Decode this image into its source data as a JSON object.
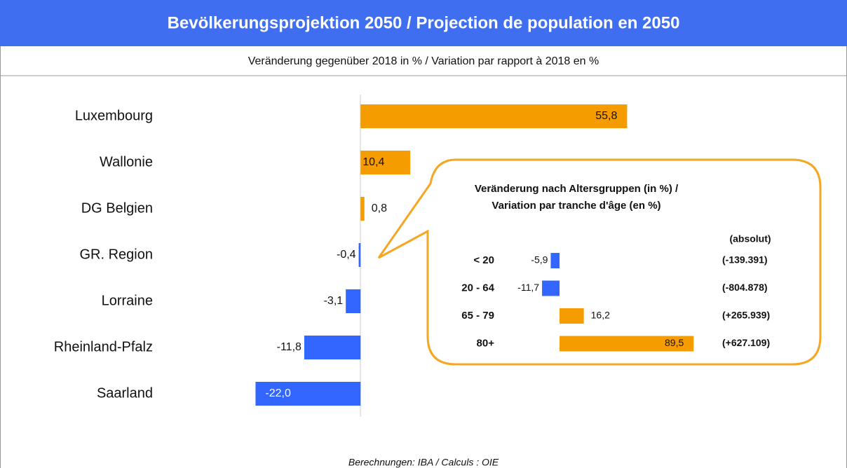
{
  "header": {
    "title": "Bevölkerungsprojektion 2050 / Projection de population en 2050",
    "subtitle": "Veränderung gegenüber 2018 in % / Variation par rapport à 2018 en %",
    "footer": "Berechnungen: IBA / Calculs : OIE"
  },
  "chart_data": [
    {
      "type": "hbar",
      "categories": [
        "Luxembourg",
        "Wallonie",
        "DG Belgien",
        "GR. Region",
        "Lorraine",
        "Rheinland-Pfalz",
        "Saarland"
      ],
      "values": [
        55.8,
        10.4,
        0.8,
        -0.4,
        -3.1,
        -11.8,
        -22.0
      ],
      "value_labels": [
        "55,8",
        "10,4",
        "0,8",
        "-0,4",
        "-3,1",
        "-11,8",
        "-22,0"
      ],
      "xlim": [
        -25,
        60
      ],
      "positive_color": "#f59c00",
      "negative_color": "#3366ff"
    },
    {
      "type": "hbar",
      "title": [
        "Veränderung nach Altersgruppen (in %)  /",
        "Variation par tranche d'âge (en %)"
      ],
      "categories": [
        "< 20",
        "20 - 64",
        "65 - 79",
        "80+"
      ],
      "values": [
        -5.9,
        -11.7,
        16.2,
        89.5
      ],
      "value_labels": [
        "-5,9",
        "-11,7",
        "16,2",
        "89,5"
      ],
      "absolute_header": "(absolut)",
      "absolute_labels": [
        "(-139.391)",
        "(-804.878)",
        "(+265.939)",
        "(+627.109)"
      ],
      "xlim": [
        -15,
        95
      ],
      "positive_color": "#f59c00",
      "negative_color": "#3366ff"
    }
  ]
}
